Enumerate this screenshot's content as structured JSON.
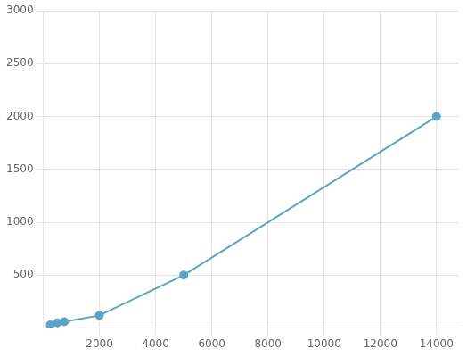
{
  "chart_data": {
    "type": "line",
    "x": [
      250,
      500,
      750,
      2000,
      5000,
      14000
    ],
    "values": [
      30,
      50,
      60,
      120,
      500,
      2000
    ],
    "color": "#5ba3c9",
    "marker": "circle",
    "xlim": [
      0,
      14800
    ],
    "ylim": [
      0,
      3000
    ],
    "xticks": [
      2000,
      4000,
      6000,
      8000,
      10000,
      12000,
      14000
    ],
    "yticks": [
      500,
      1000,
      1500,
      2000,
      2500,
      3000
    ],
    "grid": true
  }
}
